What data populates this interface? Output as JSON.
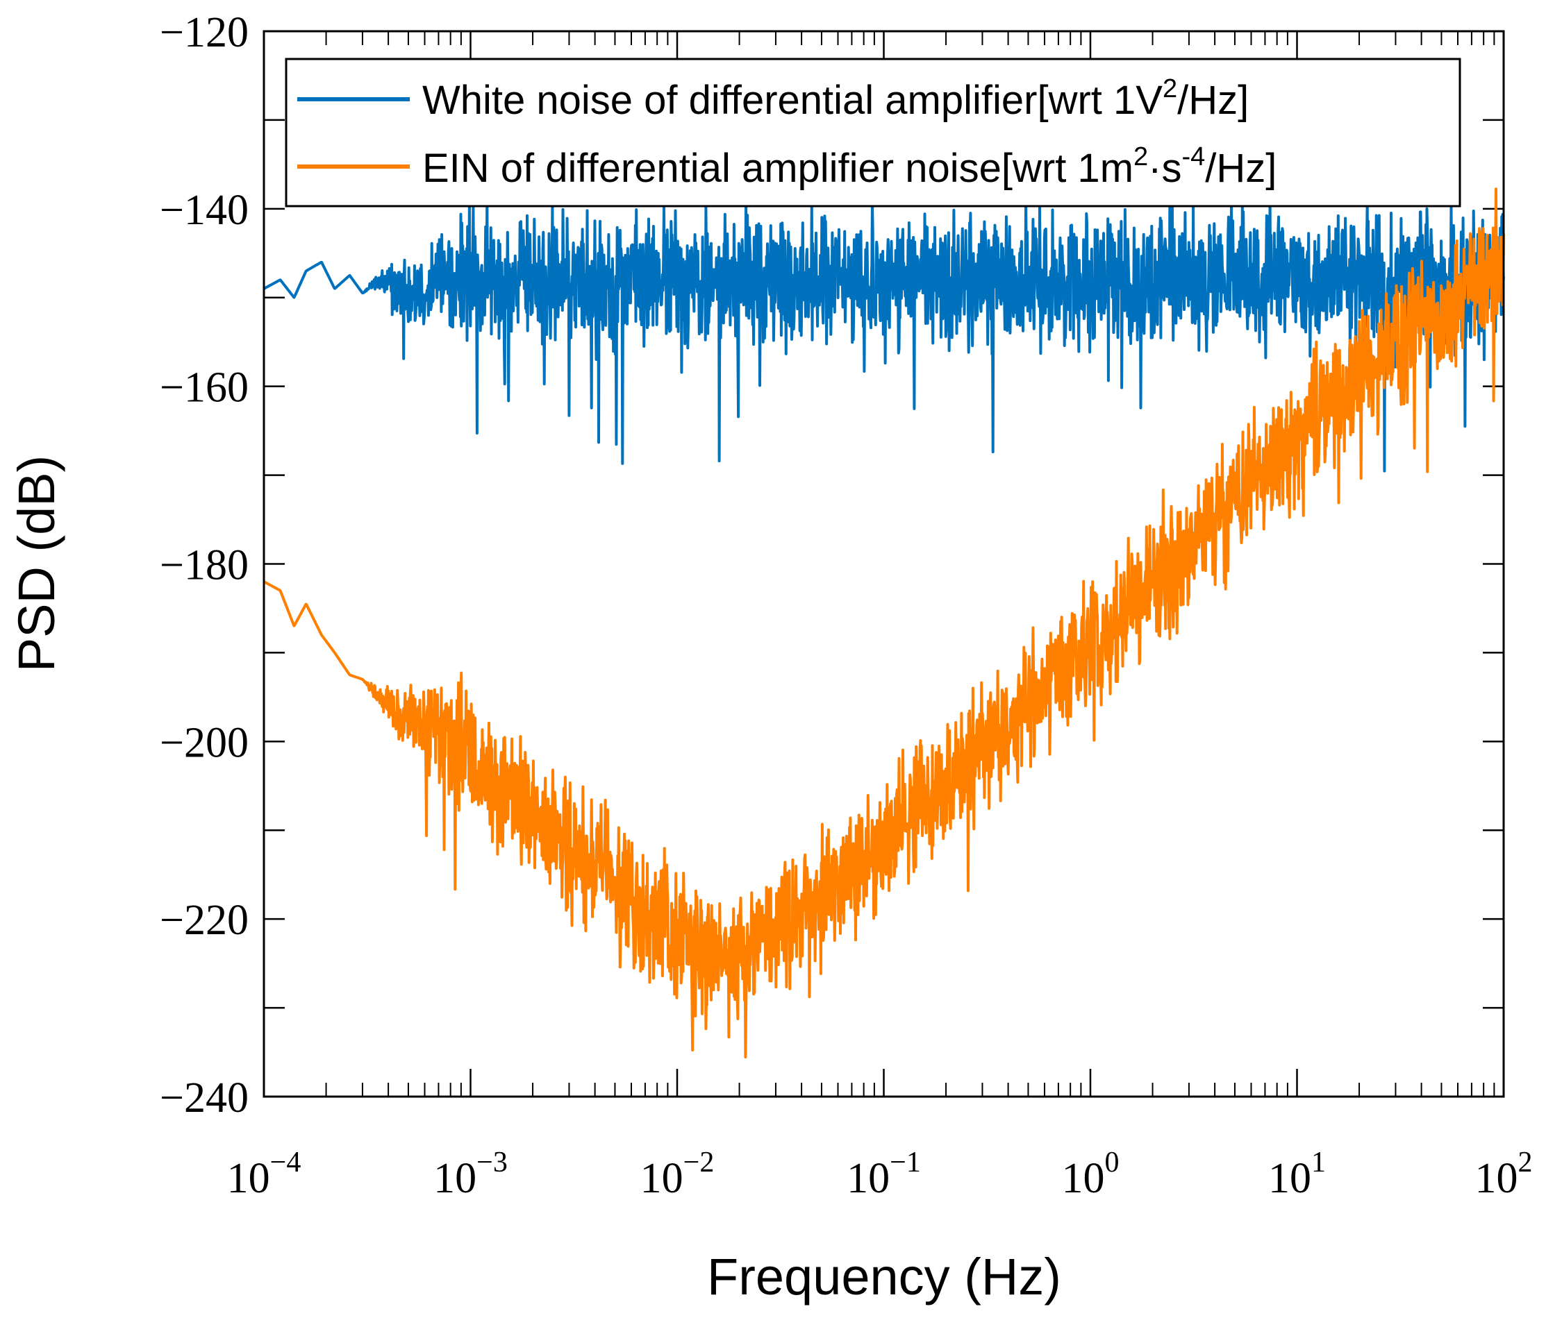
{
  "chart_data": {
    "type": "line",
    "title": "",
    "xlabel": "Frequency (Hz)",
    "ylabel": "PSD (dB)",
    "xscale": "log",
    "xlim": [
      0.0001,
      100
    ],
    "ylim": [
      -240,
      -120
    ],
    "grid": false,
    "legend_position": "top",
    "x_ticks": [
      {
        "value": 0.0001,
        "base": "10",
        "exp": "−4"
      },
      {
        "value": 0.001,
        "base": "10",
        "exp": "−3"
      },
      {
        "value": 0.01,
        "base": "10",
        "exp": "−2"
      },
      {
        "value": 0.1,
        "base": "10",
        "exp": "−1"
      },
      {
        "value": 1,
        "base": "10",
        "exp": "0"
      },
      {
        "value": 10,
        "base": "10",
        "exp": "1"
      },
      {
        "value": 100,
        "base": "10",
        "exp": "2"
      }
    ],
    "y_ticks": [
      {
        "value": -120,
        "label": "−120"
      },
      {
        "value": -140,
        "label": "−140"
      },
      {
        "value": -160,
        "label": "−160"
      },
      {
        "value": -180,
        "label": "−180"
      },
      {
        "value": -200,
        "label": "−200"
      },
      {
        "value": -220,
        "label": "−220"
      },
      {
        "value": -240,
        "label": "−240"
      }
    ],
    "legend": [
      {
        "series": "white",
        "text": "White noise of differential amplifier[wrt 1V",
        "sup": "2",
        "tail": "/Hz]"
      },
      {
        "series": "ein",
        "text": "EIN of differential amplifier noise[wrt 1m",
        "sup": "2",
        "mid": "·s",
        "sup2": "-4",
        "tail": "/Hz]"
      }
    ],
    "series": [
      {
        "name": "White noise of differential amplifier[wrt 1V2/Hz]",
        "color": "#0072BD",
        "x": [
          0.0001,
          0.00012,
          0.00014,
          0.00016,
          0.00019,
          0.00022,
          0.00026,
          0.0003,
          0.00036,
          0.00045,
          0.0006,
          0.0008,
          0.001,
          0.0015,
          0.002,
          0.003,
          0.005,
          0.01,
          0.02,
          0.05,
          0.1,
          0.2,
          0.5,
          1,
          2,
          5,
          10,
          20,
          50,
          100
        ],
        "y": [
          -149,
          -148,
          -150,
          -147,
          -146,
          -149,
          -147.5,
          -149.5,
          -148,
          -149,
          -148.5,
          -147.5,
          -148,
          -148,
          -148,
          -148,
          -148,
          -148,
          -148,
          -148,
          -148,
          -148,
          -148,
          -148,
          -148,
          -148,
          -148,
          -148,
          -148,
          -148
        ],
        "noise_amplitude": [
          0,
          0,
          0,
          0,
          0,
          0,
          0,
          0,
          0.5,
          1.5,
          2.5,
          3,
          3.5,
          3.5,
          3.5,
          3.5,
          3.5,
          3.5,
          3.5,
          3.5,
          3.5,
          3.5,
          3.5,
          3.5,
          3.5,
          3.5,
          3.5,
          3.5,
          3.5,
          3.5
        ]
      },
      {
        "name": "EIN of differential amplifier noise[wrt 1m2·s-4/Hz]",
        "color": "#FF8000",
        "x": [
          0.0001,
          0.00012,
          0.00014,
          0.00016,
          0.00019,
          0.00022,
          0.00026,
          0.0003,
          0.00036,
          0.00045,
          0.0006,
          0.0008,
          0.001,
          0.0015,
          0.002,
          0.003,
          0.005,
          0.008,
          0.012,
          0.02,
          0.03,
          0.05,
          0.1,
          0.2,
          0.5,
          1,
          2,
          5,
          10,
          20,
          50,
          100
        ],
        "y": [
          -182,
          -183,
          -187,
          -184.5,
          -188,
          -190,
          -192.5,
          -193,
          -195,
          -197,
          -198.5,
          -200,
          -202,
          -206,
          -209,
          -212,
          -216,
          -220,
          -223,
          -224,
          -221,
          -217,
          -211,
          -205,
          -196,
          -189,
          -182,
          -173,
          -166,
          -159,
          -151,
          -146
        ],
        "noise_amplitude": [
          0,
          0,
          0,
          0,
          0,
          0,
          0,
          0,
          0.5,
          1.5,
          2.5,
          3,
          3.5,
          3.5,
          3.5,
          3.5,
          3.5,
          3.5,
          3.5,
          3.5,
          3.5,
          3.5,
          3.5,
          3.5,
          3.5,
          3.5,
          3.5,
          3.5,
          3.5,
          3.5,
          3.5,
          3.5
        ]
      }
    ]
  }
}
